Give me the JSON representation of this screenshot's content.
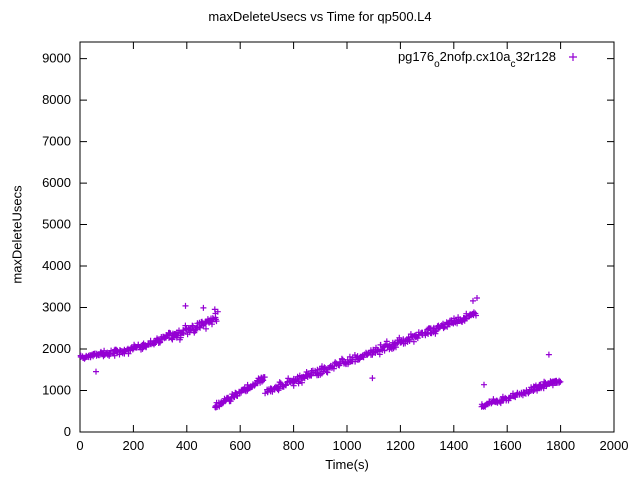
{
  "chart_data": {
    "type": "scatter",
    "title": "maxDeleteUsecs vs Time for qp500.L4",
    "xlabel": "Time(s)",
    "ylabel": "maxDeleteUsecs",
    "xlim": [
      0,
      2000
    ],
    "ylim": [
      0,
      9400
    ],
    "xticks": [
      0,
      200,
      400,
      600,
      800,
      1000,
      1200,
      1400,
      1600,
      1800,
      2000
    ],
    "yticks": [
      0,
      1000,
      2000,
      3000,
      4000,
      5000,
      6000,
      7000,
      8000,
      9000
    ],
    "grid": false,
    "legend_position": "top-right-inside",
    "legend_label": "pg176_o2nofp.cx10a_c32r128",
    "legend_parts": [
      {
        "text": "pg176"
      },
      {
        "sub": "o"
      },
      {
        "text": "2nofp.cx10a"
      },
      {
        "sub": "c"
      },
      {
        "text": "32r128"
      }
    ],
    "marker": {
      "shape": "plus",
      "color": "#9400D3",
      "size": 3
    },
    "seed": 42,
    "series_trend_segments": [
      {
        "x0": 2,
        "x1": 200,
        "y0": 1810,
        "y1": 1980,
        "n": 75,
        "spread": 85
      },
      {
        "x0": 200,
        "x1": 350,
        "y0": 1990,
        "y1": 2330,
        "n": 60,
        "spread": 110
      },
      {
        "x0": 350,
        "x1": 515,
        "y0": 2330,
        "y1": 2720,
        "n": 65,
        "spread": 150
      },
      {
        "x0": 505,
        "x1": 695,
        "y0": 610,
        "y1": 1290,
        "n": 75,
        "spread": 90
      },
      {
        "x0": 695,
        "x1": 745,
        "y0": 960,
        "y1": 1090,
        "n": 16,
        "spread": 80
      },
      {
        "x0": 740,
        "x1": 1485,
        "y0": 1090,
        "y1": 2840,
        "n": 270,
        "spread": 125
      },
      {
        "x0": 1505,
        "x1": 1565,
        "y0": 620,
        "y1": 770,
        "n": 25,
        "spread": 70
      },
      {
        "x0": 1560,
        "x1": 1705,
        "y0": 720,
        "y1": 1040,
        "n": 45,
        "spread": 80
      },
      {
        "x0": 1700,
        "x1": 1800,
        "y0": 1060,
        "y1": 1230,
        "n": 45,
        "spread": 85
      }
    ],
    "outliers": [
      [
        60,
        1455
      ],
      [
        395,
        3040
      ],
      [
        462,
        2990
      ],
      [
        505,
        2955
      ],
      [
        516,
        2900
      ],
      [
        1095,
        1300
      ],
      [
        1472,
        3160
      ],
      [
        1487,
        3230
      ],
      [
        1513,
        1140
      ],
      [
        1756,
        1865
      ]
    ]
  }
}
